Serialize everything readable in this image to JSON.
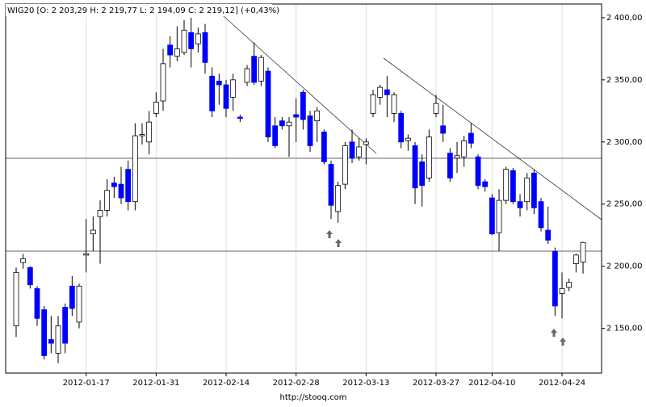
{
  "chart_data": {
    "type": "candlestick",
    "title": "WIG20 [O: 2 203,29  H: 2 219,77  L: 2 194,09  C: 2 219,12] (+0,43%)",
    "footer": "http://stooq.com",
    "categories": [
      null,
      null,
      null,
      null,
      null,
      null,
      null,
      null,
      null,
      null,
      "2012-01-17",
      null,
      null,
      null,
      null,
      null,
      null,
      null,
      null,
      null,
      "2012-01-31",
      null,
      null,
      null,
      null,
      null,
      null,
      null,
      null,
      null,
      "2012-02-14",
      null,
      null,
      null,
      null,
      null,
      null,
      null,
      null,
      null,
      "2012-02-28",
      null,
      null,
      null,
      null,
      null,
      null,
      null,
      null,
      null,
      "2012-03-13",
      null,
      null,
      null,
      null,
      null,
      null,
      null,
      null,
      null,
      "2012-03-27",
      null,
      null,
      null,
      null,
      null,
      null,
      null,
      "2012-04-10",
      null,
      null,
      null,
      null,
      null,
      null,
      null,
      null,
      null,
      "2012-04-24",
      null,
      null,
      null
    ],
    "open": [
      2152,
      2203,
      2199,
      2182,
      2165,
      2141,
      2130,
      2167,
      2184,
      2155,
      2209,
      2226,
      2240,
      2245,
      2267,
      2266,
      2278,
      2252,
      2305,
      2300,
      2323,
      2333,
      2378,
      2369,
      2372,
      2388,
      2379,
      2388,
      2353,
      2349,
      2346,
      2336,
      2320,
      2348,
      2369,
      2349,
      2357,
      2313,
      2317,
      2313,
      2322,
      2340,
      2321,
      2317,
      2308,
      2282,
      2244,
      2266,
      2300,
      2288,
      2298,
      2323,
      2336,
      2342,
      2323,
      2323,
      2301,
      2297,
      2284,
      2271,
      2323,
      2313,
      2291,
      2287,
      2288,
      2307,
      2288,
      2268,
      2255,
      2227,
      2253,
      2277,
      2252,
      2252,
      2275,
      2252,
      2229,
      2212,
      2178,
      2183,
      2202,
      2203.29
    ],
    "high": [
      2199,
      2210,
      2200,
      2184,
      2168,
      2160,
      2160,
      2170,
      2192,
      2186,
      2238,
      2240,
      2253,
      2270,
      2272,
      2280,
      2285,
      2315,
      2315,
      2325,
      2340,
      2375,
      2385,
      2393,
      2398,
      2400,
      2392,
      2395,
      2360,
      2355,
      2350,
      2355,
      2322,
      2362,
      2380,
      2370,
      2360,
      2320,
      2320,
      2320,
      2335,
      2342,
      2325,
      2328,
      2310,
      2285,
      2268,
      2300,
      2310,
      2303,
      2303,
      2342,
      2346,
      2353,
      2340,
      2325,
      2306,
      2300,
      2290,
      2310,
      2338,
      2330,
      2295,
      2300,
      2305,
      2315,
      2290,
      2270,
      2258,
      2262,
      2280,
      2279,
      2258,
      2275,
      2278,
      2255,
      2248,
      2215,
      2195,
      2190,
      2210,
      2219.77
    ],
    "low": [
      2143,
      2198,
      2182,
      2152,
      2125,
      2130,
      2122,
      2130,
      2160,
      2150,
      2195,
      2212,
      2202,
      2240,
      2255,
      2250,
      2245,
      2245,
      2298,
      2290,
      2320,
      2325,
      2360,
      2365,
      2370,
      2360,
      2372,
      2355,
      2320,
      2330,
      2320,
      2325,
      2316,
      2345,
      2346,
      2345,
      2300,
      2295,
      2310,
      2288,
      2300,
      2310,
      2292,
      2300,
      2282,
      2238,
      2235,
      2262,
      2283,
      2285,
      2282,
      2320,
      2330,
      2320,
      2316,
      2295,
      2293,
      2250,
      2248,
      2268,
      2320,
      2300,
      2268,
      2275,
      2280,
      2295,
      2262,
      2260,
      2225,
      2212,
      2250,
      2250,
      2240,
      2245,
      2242,
      2228,
      2218,
      2160,
      2158,
      2180,
      2195,
      2194.09
    ],
    "close": [
      2195,
      2206,
      2185,
      2158,
      2128,
      2138,
      2152,
      2138,
      2166,
      2184,
      2210,
      2229,
      2245,
      2261,
      2264,
      2255,
      2252,
      2305,
      2306,
      2316,
      2332,
      2363,
      2370,
      2375,
      2390,
      2375,
      2387,
      2364,
      2325,
      2346,
      2327,
      2350,
      2319,
      2359,
      2348,
      2368,
      2304,
      2297,
      2313,
      2316,
      2320,
      2318,
      2297,
      2325,
      2284,
      2249,
      2265,
      2297,
      2287,
      2296,
      2300,
      2338,
      2344,
      2338,
      2338,
      2300,
      2303,
      2263,
      2265,
      2304,
      2331,
      2307,
      2271,
      2289,
      2301,
      2299,
      2265,
      2264,
      2226,
      2253,
      2278,
      2252,
      2247,
      2271,
      2247,
      2231,
      2221,
      2168,
      2182,
      2187,
      2209,
      2219.12
    ],
    "up_color": "#ffffff",
    "down_color": "#0000ff",
    "ylim": [
      2114,
      2411
    ],
    "yticks": [
      {
        "value": 2150,
        "label": "2 150,00"
      },
      {
        "value": 2200,
        "label": "2 200,00"
      },
      {
        "value": 2250,
        "label": "2 250,00"
      },
      {
        "value": 2300,
        "label": "2 300,00"
      },
      {
        "value": 2350,
        "label": "2 350,00"
      },
      {
        "value": 2400,
        "label": "2 400,00"
      }
    ],
    "grid": true
  }
}
